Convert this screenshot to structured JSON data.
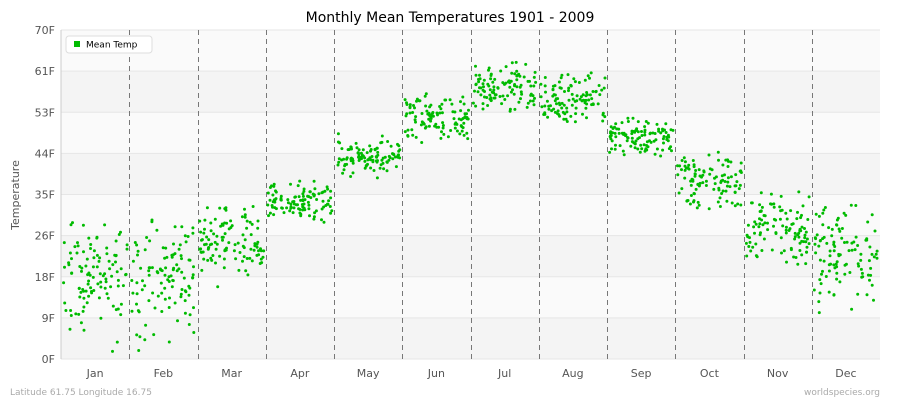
{
  "chart_data": {
    "type": "scatter",
    "title": "Monthly Mean Temperatures 1901 - 2009",
    "ylabel": "Temperature",
    "xlabel": "",
    "y_ticks": [
      "0F",
      "9F",
      "18F",
      "26F",
      "35F",
      "44F",
      "53F",
      "61F",
      "70F"
    ],
    "ylim": [
      0,
      70
    ],
    "categories": [
      "Jan",
      "Feb",
      "Mar",
      "Apr",
      "May",
      "Jun",
      "Jul",
      "Aug",
      "Sep",
      "Oct",
      "Nov",
      "Dec"
    ],
    "series": [
      {
        "name": "Mean Temp",
        "color": "#00bb00",
        "n_per_month": 109,
        "monthly_mean": [
          17.5,
          17.5,
          25.0,
          33.5,
          42.5,
          51.5,
          57.5,
          55.5,
          47.0,
          38.0,
          28.0,
          22.0
        ],
        "monthly_min": [
          0.0,
          0.0,
          14.0,
          28.0,
          38.0,
          45.0,
          52.0,
          50.0,
          43.0,
          30.0,
          20.0,
          6.0
        ],
        "monthly_max": [
          30.0,
          30.0,
          33.0,
          38.0,
          48.0,
          58.0,
          64.0,
          62.0,
          53.0,
          46.0,
          37.0,
          33.0
        ]
      }
    ],
    "legend": "top-left",
    "grid": true
  },
  "footer": {
    "left": "Latitude 61.75 Longitude 16.75",
    "right": "worldspecies.org"
  }
}
